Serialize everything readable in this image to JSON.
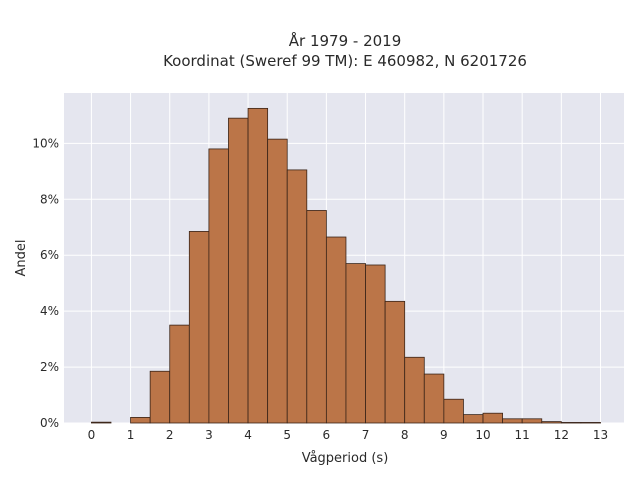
{
  "chart_data": {
    "type": "bar",
    "title_line1": "År 1979 - 2019",
    "title_line2": "Koordinat (Sweref 99 TM): E 460982, N 6201726",
    "xlabel": "Vågperiod (s)",
    "ylabel": "Andel",
    "bin_width": 0.5,
    "bin_starts": [
      0,
      0.5,
      1,
      1.5,
      2,
      2.5,
      3,
      3.5,
      4,
      4.5,
      5,
      5.5,
      6,
      6.5,
      7,
      7.5,
      8,
      8.5,
      9,
      9.5,
      10,
      10.5,
      11,
      11.5,
      12,
      12.5
    ],
    "values": [
      0.03,
      0,
      0.2,
      1.85,
      3.5,
      6.85,
      9.8,
      10.9,
      11.25,
      10.15,
      9.05,
      7.6,
      6.65,
      5.7,
      5.65,
      4.35,
      2.35,
      1.75,
      0.85,
      0.3,
      0.35,
      0.15,
      0.15,
      0.05,
      0.02,
      0.02
    ],
    "x_ticks": [
      0,
      1,
      2,
      3,
      4,
      5,
      6,
      7,
      8,
      9,
      10,
      11,
      12,
      13
    ],
    "y_ticks": [
      0,
      2,
      4,
      6,
      8,
      10
    ],
    "y_tick_labels": [
      "0%",
      "2%",
      "4%",
      "6%",
      "8%",
      "10%"
    ],
    "xlim": [
      -0.7,
      13.6
    ],
    "ylim": [
      0,
      11.8
    ],
    "grid": true,
    "bar_color": "#bb7548",
    "bar_edge": "#3a2418",
    "plot_bg": "#e5e6ef"
  }
}
